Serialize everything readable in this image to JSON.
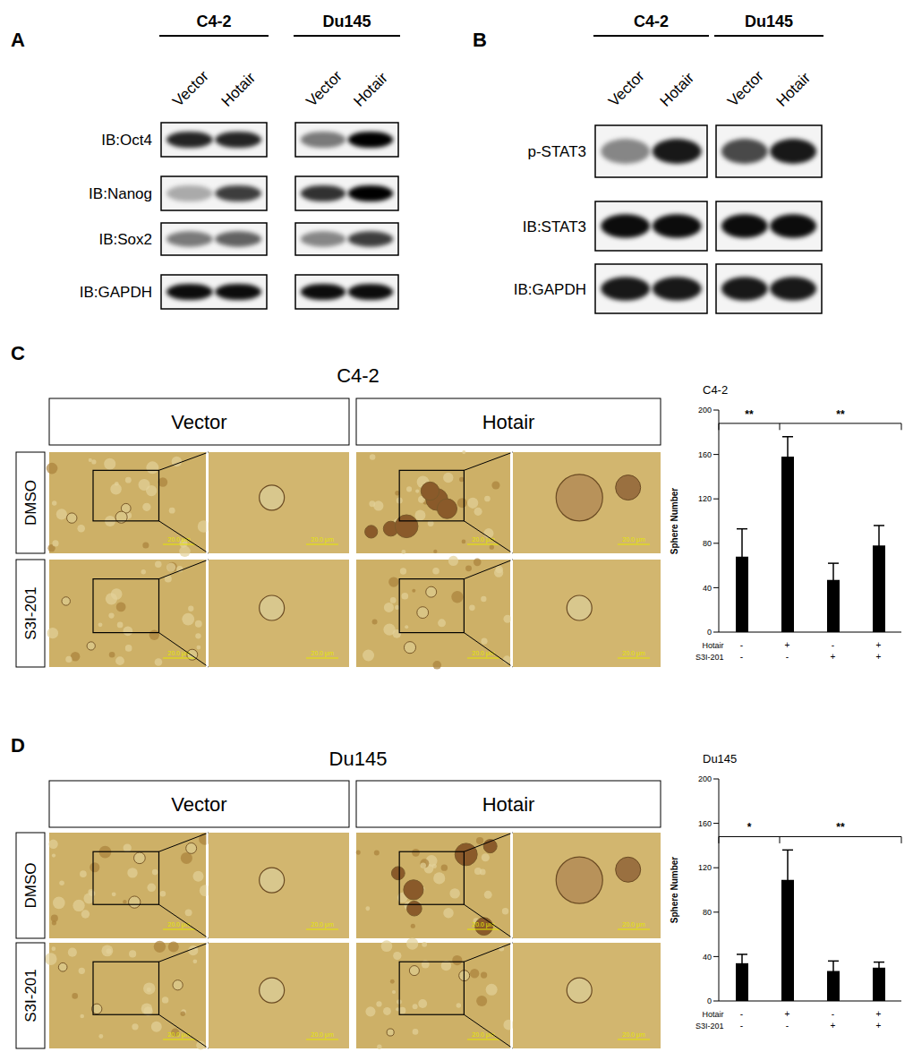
{
  "panels": [
    {
      "label": "A",
      "groups": [
        {
          "title": "C4-2",
          "lanes": [
            "Vector",
            "Hotair"
          ]
        },
        {
          "title": "Du145",
          "lanes": [
            "Vector",
            "Hotair"
          ]
        }
      ],
      "rows": [
        "IB:Oct4",
        "IB:Nanog",
        "IB:Sox2",
        "IB:GAPDH"
      ]
    },
    {
      "label": "B",
      "groups": [
        {
          "title": "C4-2",
          "lanes": [
            "Vector",
            "Hotair"
          ]
        },
        {
          "title": "Du145",
          "lanes": [
            "Vector",
            "Hotair"
          ]
        }
      ],
      "rows": [
        "p-STAT3",
        "IB:STAT3",
        "IB:GAPDH"
      ]
    },
    {
      "label": "C",
      "title": "C4-2",
      "columns": [
        "Vector",
        "Hotair"
      ],
      "rows": [
        "DMSO",
        "S3I-201"
      ],
      "scale_bar": "20.0 μm"
    },
    {
      "label": "D",
      "title": "Du145",
      "columns": [
        "Vector",
        "Hotair"
      ],
      "rows": [
        "DMSO",
        "S3I-201"
      ],
      "scale_bar": "20.0 μm"
    }
  ],
  "chart_data": [
    {
      "type": "bar",
      "title": "C4-2",
      "y_label": "Sphere Number",
      "conditions": {
        "rows": [
          "Hotair",
          "S3I-201"
        ],
        "values": [
          [
            "-",
            "+",
            "-",
            "+"
          ],
          [
            "-",
            "-",
            "+",
            "+"
          ]
        ]
      },
      "values": [
        68,
        158,
        47,
        78
      ],
      "errors": [
        25,
        18,
        15,
        18
      ],
      "color": "#000000",
      "ylim": [
        0,
        200
      ],
      "yticks": [
        0,
        40,
        80,
        120,
        160,
        200
      ],
      "significance": [
        {
          "from": 0,
          "to": 1,
          "label": "**"
        },
        {
          "from": 1,
          "to": 3,
          "label": "**"
        }
      ]
    },
    {
      "type": "bar",
      "title": "Du145",
      "y_label": "Sphere Number",
      "conditions": {
        "rows": [
          "Hotair",
          "S3I-201"
        ],
        "values": [
          [
            "-",
            "+",
            "-",
            "+"
          ],
          [
            "-",
            "-",
            "+",
            "+"
          ]
        ]
      },
      "values": [
        34,
        109,
        27,
        30
      ],
      "errors": [
        8,
        27,
        9,
        5
      ],
      "color": "#000000",
      "ylim": [
        0,
        200
      ],
      "yticks": [
        0,
        40,
        80,
        120,
        160,
        200
      ],
      "significance": [
        {
          "from": 0,
          "to": 1,
          "label": "*"
        },
        {
          "from": 1,
          "to": 3,
          "label": "**"
        }
      ]
    }
  ]
}
